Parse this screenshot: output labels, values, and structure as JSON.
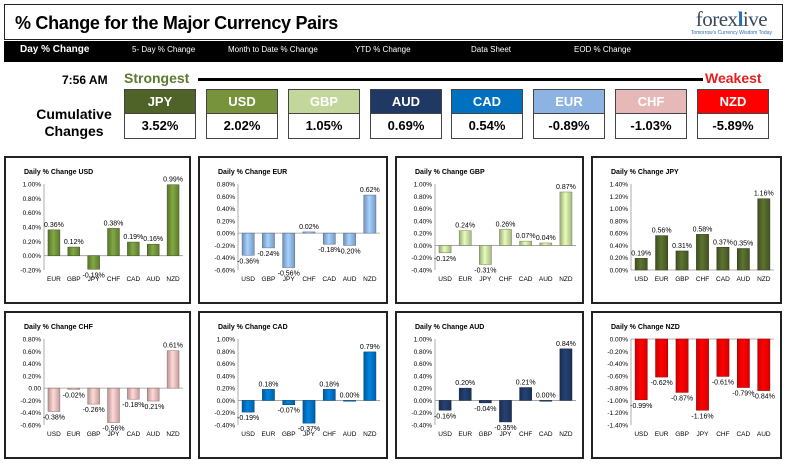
{
  "header": {
    "title": "% Change for the Major Currency Pairs",
    "logo_text": "forexlive",
    "logo_tagline": "Tomorrow's Currency Wisdom Today"
  },
  "nav": {
    "tabs": [
      {
        "label": "Day % Change",
        "active": true
      },
      {
        "label": "5- Day % Change",
        "active": false
      },
      {
        "label": "Month to Date % Change",
        "active": false
      },
      {
        "label": "YTD % Change",
        "active": false
      },
      {
        "label": "Data Sheet",
        "active": false
      },
      {
        "label": "EOD % Change",
        "active": false
      }
    ]
  },
  "summary": {
    "time": "7:56 AM",
    "strongest_label": "Strongest",
    "weakest_label": "Weakest",
    "cumulative_label": "Cumulative Changes",
    "currencies": [
      {
        "code": "JPY",
        "value": "3.52%",
        "color": "#4f6228"
      },
      {
        "code": "USD",
        "value": "2.02%",
        "color": "#77933c"
      },
      {
        "code": "GBP",
        "value": "1.05%",
        "color": "#c3d69b"
      },
      {
        "code": "AUD",
        "value": "0.69%",
        "color": "#1f3864"
      },
      {
        "code": "CAD",
        "value": "0.54%",
        "color": "#0070c0"
      },
      {
        "code": "EUR",
        "value": "-0.89%",
        "color": "#8db3e2"
      },
      {
        "code": "CHF",
        "value": "-1.03%",
        "color": "#e6b8b7"
      },
      {
        "code": "NZD",
        "value": "-5.89%",
        "color": "#ff0000"
      }
    ]
  },
  "chart_data": [
    {
      "type": "bar",
      "title": "Daily % Change USD",
      "color": "#6e8f3a",
      "categories": [
        "EUR",
        "GBP",
        "JPY",
        "CHF",
        "CAD",
        "AUD",
        "NZD"
      ],
      "values": [
        0.36,
        0.12,
        -0.19,
        0.38,
        0.19,
        0.16,
        0.99
      ],
      "data_labels": [
        "0.36%",
        "0.12%",
        "-0.19%",
        "0.38%",
        "0.19%",
        "0.16%",
        "0.99%"
      ],
      "ylim": [
        -0.2,
        1.0
      ],
      "yticks": [
        "-0.20%",
        "0.00%",
        "0.20%",
        "0.40%",
        "0.60%",
        "0.80%",
        "1.00%"
      ]
    },
    {
      "type": "bar",
      "title": "Daily % Change EUR",
      "color": "#8db3e2",
      "categories": [
        "USD",
        "GBP",
        "JPY",
        "CHF",
        "CAD",
        "AUD",
        "NZD"
      ],
      "values": [
        -0.36,
        -0.24,
        -0.56,
        0.02,
        -0.18,
        -0.2,
        0.62
      ],
      "data_labels": [
        "-0.36%",
        "-0.24%",
        "-0.56%",
        "0.02%",
        "-0.18%",
        "-0.20%",
        "0.62%"
      ],
      "ylim": [
        -0.6,
        0.8
      ],
      "yticks": [
        "-0.60%",
        "-0.40%",
        "-0.20%",
        "0.00%",
        "0.20%",
        "0.40%",
        "0.60%",
        "0.80%"
      ]
    },
    {
      "type": "bar",
      "title": "Daily % Change GBP",
      "color": "#c3d69b",
      "categories": [
        "USD",
        "EUR",
        "JPY",
        "CHF",
        "CAD",
        "AUD",
        "NZD"
      ],
      "values": [
        -0.12,
        0.24,
        -0.31,
        0.26,
        0.07,
        0.04,
        0.87
      ],
      "data_labels": [
        "-0.12%",
        "0.24%",
        "-0.31%",
        "0.26%",
        "0.07%",
        "0.04%",
        "0.87%"
      ],
      "ylim": [
        -0.4,
        1.0
      ],
      "yticks": [
        "-0.40%",
        "-0.20%",
        "0.00%",
        "0.20%",
        "0.40%",
        "0.60%",
        "0.80%",
        "1.00%"
      ]
    },
    {
      "type": "bar",
      "title": "Daily % Change JPY",
      "color": "#4f6228",
      "categories": [
        "USD",
        "EUR",
        "GBP",
        "CHF",
        "CAD",
        "AUD",
        "NZD"
      ],
      "values": [
        0.19,
        0.56,
        0.31,
        0.58,
        0.37,
        0.35,
        1.16
      ],
      "data_labels": [
        "0.19%",
        "0.56%",
        "0.31%",
        "0.58%",
        "0.37%",
        "0.35%",
        "1.16%"
      ],
      "ylim": [
        0.0,
        1.4
      ],
      "yticks": [
        "0.00%",
        "0.20%",
        "0.40%",
        "0.60%",
        "0.80%",
        "1.00%",
        "1.20%",
        "1.40%"
      ]
    },
    {
      "type": "bar",
      "title": "Daily % Change CHF",
      "color": "#e6b8b7",
      "categories": [
        "USD",
        "EUR",
        "GBP",
        "JPY",
        "CAD",
        "AUD",
        "NZD"
      ],
      "values": [
        -0.38,
        -0.02,
        -0.26,
        -0.56,
        -0.18,
        -0.21,
        0.61
      ],
      "data_labels": [
        "-0.38%",
        "-0.02%",
        "-0.26%",
        "-0.56%",
        "-0.18%",
        "-0.21%",
        "0.61%"
      ],
      "ylim": [
        -0.6,
        0.8
      ],
      "yticks": [
        "-0.60%",
        "-0.40%",
        "-0.20%",
        "0.00",
        "0.20%",
        "0.40%",
        "0.60%",
        "0.80%"
      ]
    },
    {
      "type": "bar",
      "title": "Daily % Change CAD",
      "color": "#0070c0",
      "categories": [
        "USD",
        "EUR",
        "GBP",
        "JPY",
        "CHF",
        "AUD",
        "NZD"
      ],
      "values": [
        -0.19,
        0.18,
        -0.07,
        -0.37,
        0.18,
        0.0,
        0.79
      ],
      "data_labels": [
        "-0.19%",
        "0.18%",
        "-0.07%",
        "-0.37%",
        "0.18%",
        "0.00%",
        "0.79%"
      ],
      "ylim": [
        -0.4,
        1.0
      ],
      "yticks": [
        "-0.40%",
        "-0.20%",
        "0.00%",
        "0.20%",
        "0.40%",
        "0.60%",
        "0.80%",
        "1.00%"
      ]
    },
    {
      "type": "bar",
      "title": "Daily % Change AUD",
      "color": "#1f3864",
      "categories": [
        "USD",
        "EUR",
        "GBP",
        "JPY",
        "CHF",
        "CAD",
        "NZD"
      ],
      "values": [
        -0.16,
        0.2,
        -0.04,
        -0.35,
        0.21,
        0.0,
        0.84
      ],
      "data_labels": [
        "-0.16%",
        "0.20%",
        "-0.04%",
        "-0.35%",
        "0.21%",
        "0.00%",
        "0.84%"
      ],
      "ylim": [
        -0.4,
        1.0
      ],
      "yticks": [
        "-0.40%",
        "-0.20%",
        "0.00%",
        "0.20%",
        "0.40%",
        "0.60%",
        "0.80%",
        "1.00%"
      ]
    },
    {
      "type": "bar",
      "title": "Daily % Change NZD",
      "color": "#ff0000",
      "categories": [
        "USD",
        "EUR",
        "GBP",
        "JPY",
        "CHF",
        "CAD",
        "AUD"
      ],
      "values": [
        -0.99,
        -0.62,
        -0.87,
        -1.16,
        -0.61,
        -0.79,
        -0.84
      ],
      "data_labels": [
        "-0.99%",
        "-0.62%",
        "-0.87%",
        "-1.16%",
        "-0.61%",
        "-0.79%",
        "-0.84%"
      ],
      "ylim": [
        -1.4,
        0.0
      ],
      "yticks": [
        "-1.40%",
        "-1.20%",
        "-1.00%",
        "-0.80%",
        "-0.60%",
        "-0.40%",
        "-0.20%",
        "0.00%"
      ]
    }
  ]
}
